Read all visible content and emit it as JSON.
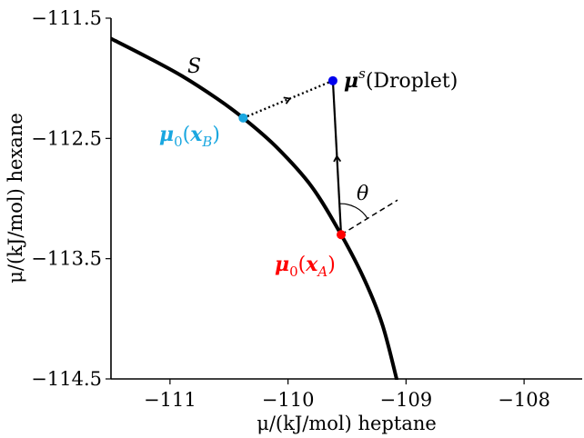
{
  "chart_data": {
    "type": "line",
    "xlabel": "μ/(kJ/mol) heptane",
    "ylabel": "μ/(kJ/mol) hexane",
    "xlim": [
      -111.5,
      -107.5
    ],
    "ylim": [
      -114.5,
      -111.5
    ],
    "x_ticks": [
      -111,
      -110,
      -109,
      -108
    ],
    "x_tick_labels": [
      "−111",
      "−110",
      "−109",
      "−108"
    ],
    "y_ticks": [
      -111.5,
      -112.5,
      -113.5,
      -114.5
    ],
    "y_tick_labels": [
      "−111.5",
      "−112.5",
      "−113.5",
      "−114.5"
    ],
    "grid": false,
    "series": [
      {
        "name": "S",
        "color": "#000000",
        "x": [
          -111.5,
          -111.2,
          -110.9,
          -110.6,
          -110.38,
          -110.1,
          -109.8,
          -109.55,
          -109.35,
          -109.2,
          -109.08
        ],
        "y": [
          -111.67,
          -111.82,
          -111.98,
          -112.17,
          -112.33,
          -112.57,
          -112.9,
          -113.3,
          -113.68,
          -114.05,
          -114.5
        ]
      }
    ],
    "points": [
      {
        "id": "droplet",
        "x": -109.62,
        "y": -112.02,
        "color": "#0000ee"
      },
      {
        "id": "xB",
        "x": -110.38,
        "y": -112.33,
        "color": "#1aa7e0"
      },
      {
        "id": "xA",
        "x": -109.55,
        "y": -113.3,
        "color": "#ff0000"
      }
    ],
    "annotations": {
      "curve": "S",
      "droplet_prefix": "μ",
      "droplet_sup": "s",
      "droplet_text": "(Droplet)",
      "xB_prefix": "μ",
      "xB_sub": "0",
      "xB_open": "(",
      "xB_var": "x",
      "xB_varsub": "B",
      "xB_close": ")",
      "xA_prefix": "μ",
      "xA_sub": "0",
      "xA_open": "(",
      "xA_var": "x",
      "xA_varsub": "A",
      "xA_close": ")",
      "angle": "θ"
    }
  }
}
